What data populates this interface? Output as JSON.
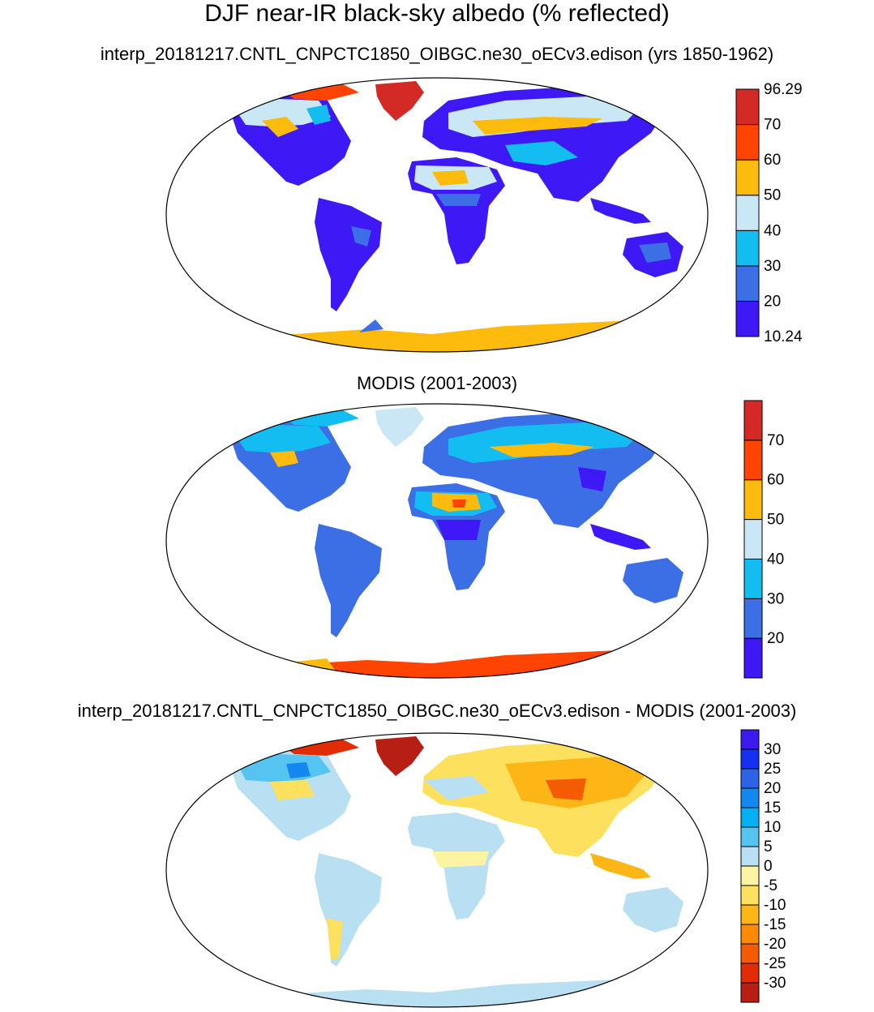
{
  "title": "DJF near-IR black-sky albedo (% reflected)",
  "panels": [
    {
      "subtitle": "interp_20181217.CNTL_CNPCTC1850_OIBGC.ne30_oECv3.edison (yrs 1850-1962)",
      "colorbar": {
        "colors": [
          "#3e18f5",
          "#3c6ee6",
          "#13bdf2",
          "#c9e7f4",
          "#fdbb0e",
          "#fe4303",
          "#d32a26"
        ],
        "labels": [
          "10.24",
          "20",
          "30",
          "40",
          "50",
          "60",
          "70",
          "96.29"
        ],
        "label_positions": "edges"
      }
    },
    {
      "subtitle": "MODIS (2001-2003)",
      "colorbar": {
        "colors": [
          "#3e18f5",
          "#3c6ee6",
          "#13bdf2",
          "#c9e7f4",
          "#fdbb0e",
          "#fe4303",
          "#d32a26"
        ],
        "labels": [
          "20",
          "30",
          "40",
          "50",
          "60",
          "70"
        ],
        "label_positions": "interior"
      }
    },
    {
      "subtitle": "interp_20181217.CNTL_CNPCTC1850_OIBGC.ne30_oECv3.edison - MODIS (2001-2003)",
      "colorbar": {
        "colors": [
          "#3b1af0",
          "#1431f2",
          "#2d63e6",
          "#1588f0",
          "#05aff2",
          "#56c4f0",
          "#b8e0f2",
          "#fdf4a3",
          "#fde05d",
          "#fdb616",
          "#fc8a05",
          "#f55b02",
          "#e22c05",
          "#b81f14"
        ],
        "labels": [
          "30",
          "25",
          "20",
          "15",
          "10",
          "5",
          "0",
          "-5",
          "-10",
          "-15",
          "-20",
          "-25",
          "-30"
        ],
        "label_positions": "interior"
      }
    }
  ]
}
